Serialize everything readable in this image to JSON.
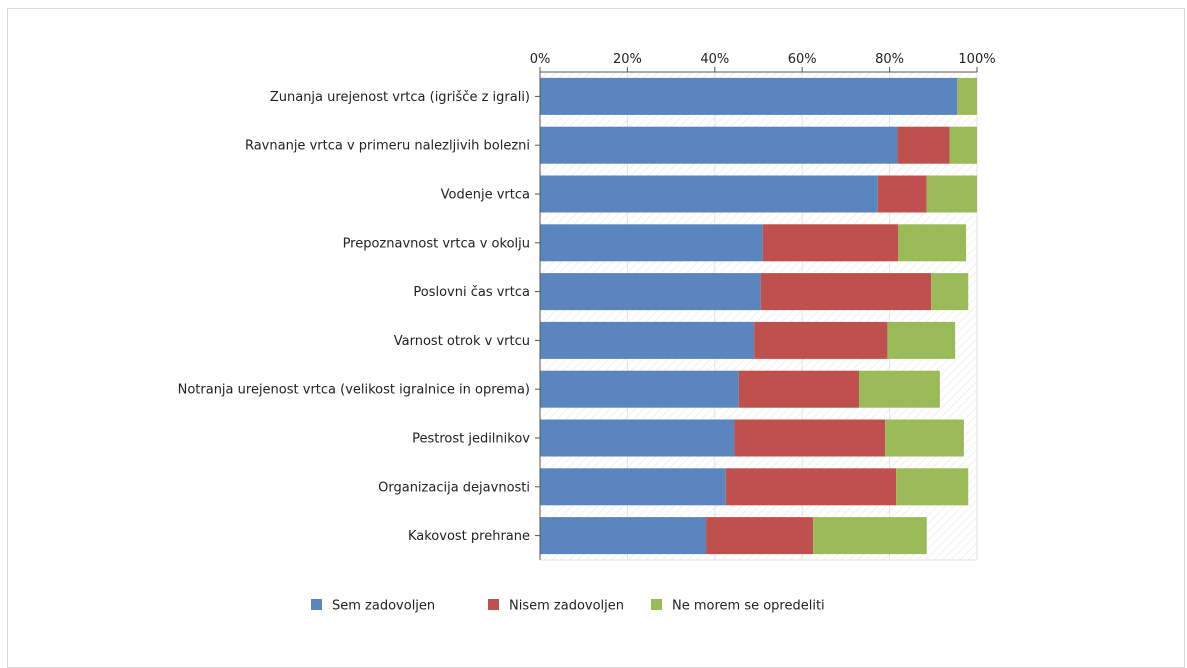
{
  "chart_data": {
    "type": "bar",
    "orientation": "horizontal",
    "stacked": true,
    "categories": [
      "Zunanja urejenost vrtca (igrišče z igrali)",
      "Ravnanje vrtca v primeru nalezljivih bolezni",
      "Vodenje vrtca",
      "Prepoznavnost vrtca v okolju",
      "Poslovni čas vrtca",
      "Varnost otrok v vrtcu",
      "Notranja urejenost vrtca (velikost igralnice in oprema)",
      "Pestrost jedilnikov",
      "Organizacija dejavnosti",
      "Kakovost prehrane"
    ],
    "series": [
      {
        "name": "Sem zadovoljen",
        "color": "#5a85bf",
        "values": [
          95.5,
          81.8,
          77.3,
          51.0,
          50.5,
          49.0,
          45.5,
          44.5,
          42.5,
          38.0
        ]
      },
      {
        "name": "Nisem zadovoljen",
        "color": "#c0504d",
        "values": [
          0.0,
          11.9,
          11.2,
          31.0,
          39.0,
          30.5,
          27.5,
          34.5,
          39.0,
          24.5
        ]
      },
      {
        "name": "Ne morem se opredeliti",
        "color": "#9bbb59",
        "values": [
          4.5,
          6.3,
          11.5,
          15.5,
          8.5,
          15.5,
          18.5,
          18.0,
          16.5,
          26.0
        ]
      }
    ],
    "xlim": [
      0,
      100
    ],
    "x_ticks": [
      "0%",
      "20%",
      "40%",
      "60%",
      "80%",
      "100%"
    ],
    "axis_position": "top",
    "grid": true,
    "legend_position": "bottom"
  }
}
